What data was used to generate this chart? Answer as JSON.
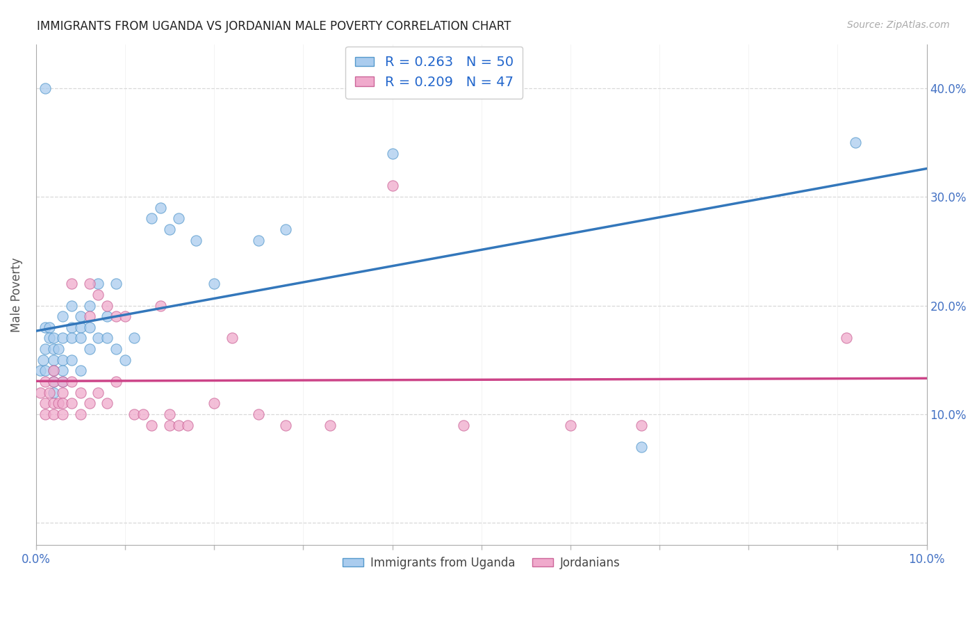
{
  "title": "IMMIGRANTS FROM UGANDA VS JORDANIAN MALE POVERTY CORRELATION CHART",
  "source": "Source: ZipAtlas.com",
  "ylabel": "Male Poverty",
  "legend_label1": "Immigrants from Uganda",
  "legend_label2": "Jordanians",
  "r1": 0.263,
  "n1": 50,
  "r2": 0.209,
  "n2": 47,
  "color1": "#aaccee",
  "color1_edge": "#5599cc",
  "color2": "#f0aacc",
  "color2_edge": "#cc6699",
  "line_color1": "#3377bb",
  "line_color2": "#cc4488",
  "xlim": [
    0.0,
    0.1
  ],
  "ylim": [
    -0.02,
    0.44
  ],
  "yticks": [
    0.0,
    0.1,
    0.2,
    0.3,
    0.4
  ],
  "ytick_labels": [
    "",
    "10.0%",
    "20.0%",
    "30.0%",
    "40.0%"
  ],
  "blue_x": [
    0.0005,
    0.0008,
    0.001,
    0.001,
    0.001,
    0.001,
    0.0015,
    0.0015,
    0.002,
    0.002,
    0.002,
    0.002,
    0.002,
    0.002,
    0.0025,
    0.003,
    0.003,
    0.003,
    0.003,
    0.003,
    0.004,
    0.004,
    0.004,
    0.004,
    0.005,
    0.005,
    0.005,
    0.005,
    0.006,
    0.006,
    0.006,
    0.007,
    0.007,
    0.008,
    0.008,
    0.009,
    0.009,
    0.01,
    0.011,
    0.013,
    0.014,
    0.015,
    0.016,
    0.018,
    0.02,
    0.025,
    0.028,
    0.04,
    0.068,
    0.092
  ],
  "blue_y": [
    0.14,
    0.15,
    0.4,
    0.18,
    0.16,
    0.14,
    0.18,
    0.17,
    0.17,
    0.16,
    0.15,
    0.14,
    0.13,
    0.12,
    0.16,
    0.19,
    0.17,
    0.15,
    0.14,
    0.13,
    0.2,
    0.18,
    0.17,
    0.15,
    0.19,
    0.18,
    0.17,
    0.14,
    0.2,
    0.18,
    0.16,
    0.22,
    0.17,
    0.19,
    0.17,
    0.22,
    0.16,
    0.15,
    0.17,
    0.28,
    0.29,
    0.27,
    0.28,
    0.26,
    0.22,
    0.26,
    0.27,
    0.34,
    0.07,
    0.35
  ],
  "pink_x": [
    0.0005,
    0.001,
    0.001,
    0.001,
    0.0015,
    0.002,
    0.002,
    0.002,
    0.002,
    0.0025,
    0.003,
    0.003,
    0.003,
    0.003,
    0.004,
    0.004,
    0.004,
    0.005,
    0.005,
    0.006,
    0.006,
    0.006,
    0.007,
    0.007,
    0.008,
    0.008,
    0.009,
    0.009,
    0.01,
    0.011,
    0.012,
    0.013,
    0.014,
    0.015,
    0.015,
    0.016,
    0.017,
    0.02,
    0.022,
    0.025,
    0.028,
    0.033,
    0.04,
    0.048,
    0.06,
    0.068,
    0.091
  ],
  "pink_y": [
    0.12,
    0.13,
    0.11,
    0.1,
    0.12,
    0.14,
    0.13,
    0.11,
    0.1,
    0.11,
    0.13,
    0.12,
    0.11,
    0.1,
    0.22,
    0.13,
    0.11,
    0.12,
    0.1,
    0.22,
    0.19,
    0.11,
    0.21,
    0.12,
    0.2,
    0.11,
    0.19,
    0.13,
    0.19,
    0.1,
    0.1,
    0.09,
    0.2,
    0.1,
    0.09,
    0.09,
    0.09,
    0.11,
    0.17,
    0.1,
    0.09,
    0.09,
    0.31,
    0.09,
    0.09,
    0.09,
    0.17
  ],
  "marker_size": 120,
  "background_color": "#ffffff",
  "grid_color": "#d8d8d8"
}
